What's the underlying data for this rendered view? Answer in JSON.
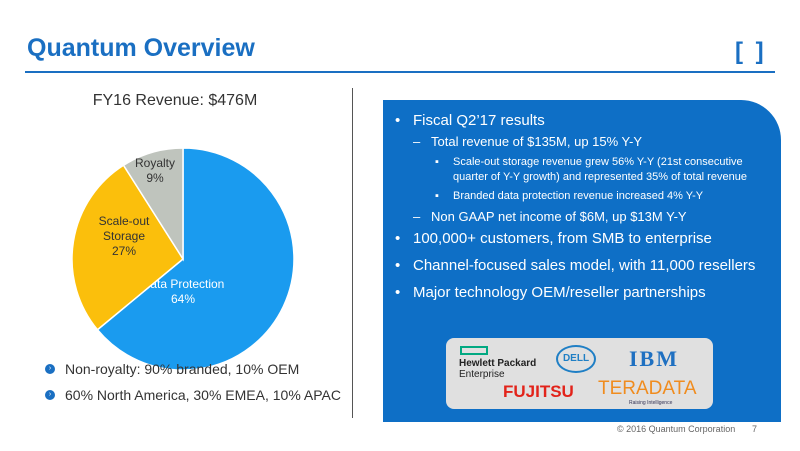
{
  "header": {
    "title": "Quantum Overview",
    "logo": "[ ]."
  },
  "chart_data": {
    "type": "pie",
    "title": "FY16 Revenue: $476M",
    "slices": [
      {
        "label": "Data Protection",
        "value": 64,
        "color": "#1a9bef"
      },
      {
        "label": "Scale-out Storage",
        "value": 27,
        "color": "#fbbf0c"
      },
      {
        "label": "Royalty",
        "value": 9,
        "color": "#bfc4bd"
      }
    ],
    "data_labels": [
      "Data Protection\n64%",
      "Scale-out\nStorage\n27%",
      "Royalty\n9%"
    ]
  },
  "bullets": [
    "Non-royalty: 90% branded, 10% OEM",
    "60% North America, 30% EMEA, 10% APAC"
  ],
  "panel": {
    "items": [
      {
        "level": 1,
        "text": "Fiscal Q2’17 results"
      },
      {
        "level": 2,
        "text": "Total revenue of $135M, up 15% Y-Y"
      },
      {
        "level": 3,
        "text": "Scale-out storage revenue grew 56% Y-Y (21st consecutive"
      },
      {
        "level": 3,
        "text": "quarter of Y-Y growth) and represented 35% of total revenue"
      },
      {
        "level": 3,
        "text": "Branded data protection revenue increased 4% Y-Y"
      },
      {
        "level": 2,
        "text": "Non GAAP net income of $6M, up $13M Y-Y"
      },
      {
        "level": 1,
        "text": "100,000+ customers, from SMB to enterprise"
      },
      {
        "level": 1,
        "text": "Channel-focused sales model, with 11,000 resellers"
      },
      {
        "level": 1,
        "text": "Major technology OEM/reseller partnerships"
      }
    ]
  },
  "partners": {
    "hpe": "Hewlett Packard",
    "hpe2": "Enterprise",
    "dell": "DELL",
    "ibm": "IBM",
    "fujitsu": "FUJITSU",
    "teradata": "TERADATA",
    "teradata_tag": "Raising Intelligence"
  },
  "footer": {
    "copyright": "© 2016 Quantum Corporation",
    "page": "7"
  }
}
